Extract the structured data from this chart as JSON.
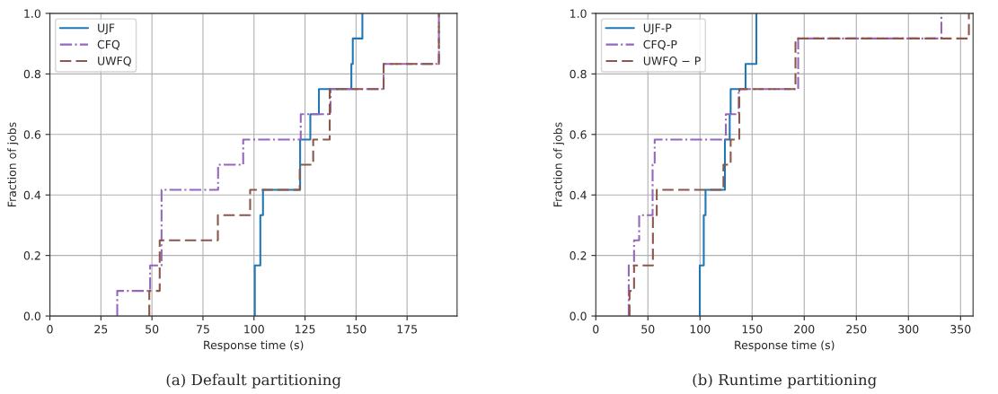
{
  "chart_data": [
    {
      "type": "step",
      "title": "(a) Default partitioning",
      "xlabel": "Response time (s)",
      "ylabel": "Fraction of jobs",
      "xlim": [
        0,
        199.5
      ],
      "xticks": [
        0,
        25,
        50,
        75,
        100,
        125,
        150,
        175
      ],
      "ylim": [
        0,
        1
      ],
      "yticks": [
        {
          "value": 0,
          "label": "0.0"
        },
        {
          "value": 0.2,
          "label": "0.2"
        },
        {
          "value": 0.4,
          "label": "0.4"
        },
        {
          "value": 0.6,
          "label": "0.6"
        },
        {
          "value": 0.8,
          "label": "0.8"
        },
        {
          "value": 1,
          "label": "1.0"
        }
      ],
      "grid": true,
      "legend": "top left",
      "series": [
        {
          "name": "UJF",
          "color": "#1f77b4",
          "line_style": "solid",
          "x": [
            100.4,
            100.4,
            103.1,
            104.4,
            122.6,
            127.6,
            131.8,
            147.7,
            148.4,
            153.1
          ],
          "values": [
            0,
            0.167,
            0.333,
            0.417,
            0.583,
            0.667,
            0.75,
            0.833,
            0.917,
            1
          ]
        },
        {
          "name": "CFQ",
          "color": "#9467bd",
          "line_style": "dashdot",
          "x": [
            33.0,
            33.0,
            49.1,
            54.7,
            82.4,
            94.7,
            122.9,
            137.5,
            163.5,
            190.6
          ],
          "values": [
            0,
            0.083,
            0.167,
            0.417,
            0.5,
            0.583,
            0.667,
            0.75,
            0.833,
            1
          ]
        },
        {
          "name": "UWFQ",
          "color": "#8c564b",
          "line_style": "dashed",
          "x": [
            48.7,
            48.7,
            53.8,
            82.3,
            98.1,
            122.4,
            129.0,
            137.1,
            163.5,
            190.6
          ],
          "values": [
            0,
            0.083,
            0.25,
            0.333,
            0.417,
            0.5,
            0.583,
            0.75,
            0.833,
            1
          ]
        }
      ]
    },
    {
      "type": "step",
      "title": "(b) Runtime partitioning",
      "xlabel": "Response time (s)",
      "ylabel": "Fraction of jobs",
      "xlim": [
        0,
        362
      ],
      "xticks": [
        0,
        50,
        100,
        150,
        200,
        250,
        300,
        350
      ],
      "ylim": [
        0,
        1
      ],
      "yticks": [
        {
          "value": 0,
          "label": "0.0"
        },
        {
          "value": 0.2,
          "label": "0.2"
        },
        {
          "value": 0.4,
          "label": "0.4"
        },
        {
          "value": 0.6,
          "label": "0.6"
        },
        {
          "value": 0.8,
          "label": "0.8"
        },
        {
          "value": 1,
          "label": "1.0"
        }
      ],
      "grid": true,
      "legend": "top left",
      "series": [
        {
          "name": "UJF-P",
          "color": "#1f77b4",
          "line_style": "solid",
          "x": [
            99.8,
            99.8,
            103.6,
            105.3,
            123.9,
            128.5,
            129.4,
            143.7,
            154.1
          ],
          "values": [
            0,
            0.167,
            0.333,
            0.417,
            0.583,
            0.667,
            0.75,
            0.833,
            1
          ]
        },
        {
          "name": "CFQ-P",
          "color": "#9467bd",
          "line_style": "dashdot",
          "x": [
            31.6,
            31.6,
            36.7,
            41.6,
            54.5,
            56.5,
            124.8,
            137.1,
            194.2,
            331.6
          ],
          "values": [
            0,
            0.167,
            0.25,
            0.333,
            0.5,
            0.583,
            0.667,
            0.75,
            0.917,
            1
          ]
        },
        {
          "name": "UWFQ − P",
          "color": "#8c564b",
          "line_style": "dashed",
          "x": [
            32.4,
            32.4,
            36.7,
            54.8,
            58.5,
            122.5,
            129.4,
            137.7,
            191.6,
            358
          ],
          "values": [
            0,
            0.083,
            0.167,
            0.333,
            0.417,
            0.5,
            0.583,
            0.75,
            0.917,
            1
          ]
        }
      ]
    }
  ]
}
